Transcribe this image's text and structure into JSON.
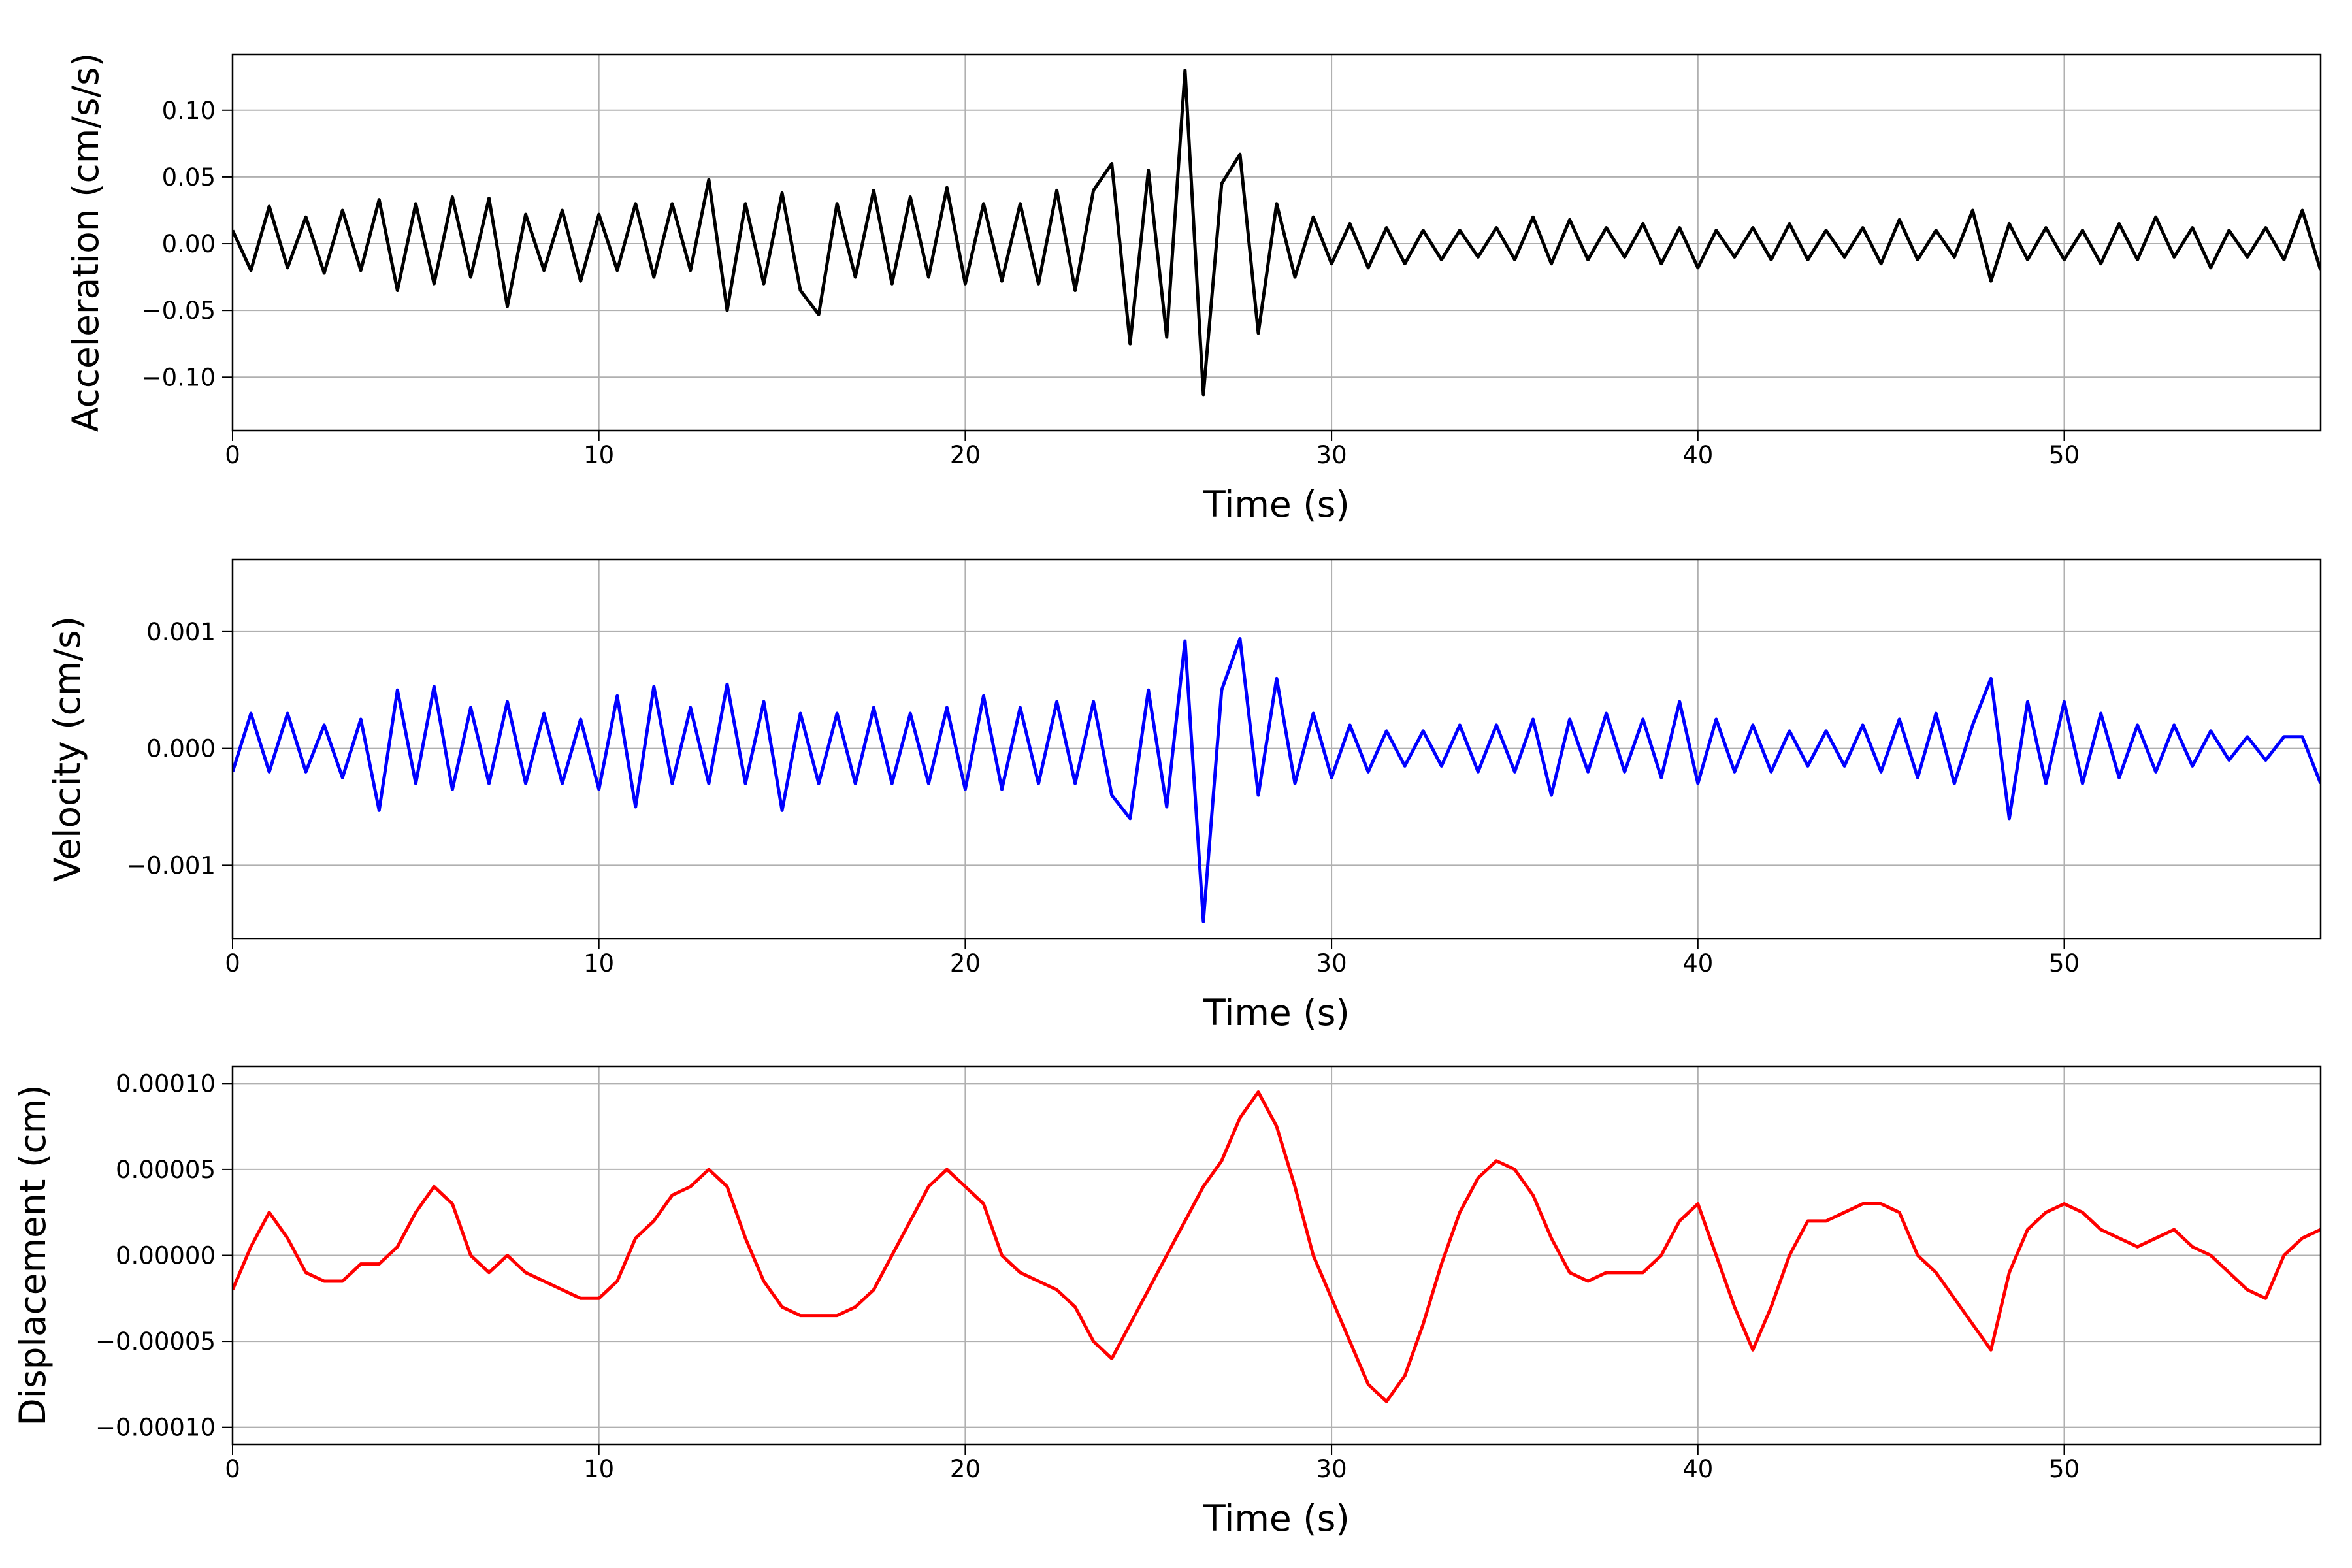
{
  "chart_data": [
    {
      "type": "line",
      "xlabel": "Time (s)",
      "ylabel": "Acceleration (cm/s/s)",
      "color": "#000000",
      "grid": true,
      "xlim": [
        0,
        57
      ],
      "ylim": [
        -0.14,
        0.142
      ],
      "xticks": [
        0,
        10,
        20,
        30,
        40,
        50
      ],
      "yticks": [
        {
          "value": -0.1,
          "label": "−0.10"
        },
        {
          "value": -0.05,
          "label": "−0.05"
        },
        {
          "value": 0,
          "label": "0.00"
        },
        {
          "value": 0.05,
          "label": "0.05"
        },
        {
          "value": 0.1,
          "label": "0.10"
        }
      ],
      "x": [
        0,
        0.5,
        1,
        1.5,
        2,
        2.5,
        3,
        3.5,
        4,
        4.5,
        5,
        5.5,
        6,
        6.5,
        7,
        7.5,
        8,
        8.5,
        9,
        9.5,
        10,
        10.5,
        11,
        11.5,
        12,
        12.5,
        13,
        13.5,
        14,
        14.5,
        15,
        15.5,
        16,
        16.5,
        17,
        17.5,
        18,
        18.5,
        19,
        19.5,
        20,
        20.5,
        21,
        21.5,
        22,
        22.5,
        23,
        23.5,
        24,
        24.5,
        25,
        25.5,
        26,
        26.5,
        27,
        27.5,
        28,
        28.5,
        29,
        29.5,
        30,
        30.5,
        31,
        31.5,
        32,
        32.5,
        33,
        33.5,
        34,
        34.5,
        35,
        35.5,
        36,
        36.5,
        37,
        37.5,
        38,
        38.5,
        39,
        39.5,
        40,
        40.5,
        41,
        41.5,
        42,
        42.5,
        43,
        43.5,
        44,
        44.5,
        45,
        45.5,
        46,
        46.5,
        47,
        47.5,
        48,
        48.5,
        49,
        49.5,
        50,
        50.5,
        51,
        51.5,
        52,
        52.5,
        53,
        53.5,
        54,
        54.5,
        55,
        55.5,
        56,
        56.5,
        57
      ],
      "values": [
        0.01,
        -0.02,
        0.028,
        -0.018,
        0.02,
        -0.022,
        0.025,
        -0.02,
        0.033,
        -0.035,
        0.03,
        -0.03,
        0.035,
        -0.025,
        0.034,
        -0.047,
        0.022,
        -0.02,
        0.025,
        -0.028,
        0.022,
        -0.02,
        0.03,
        -0.025,
        0.03,
        -0.02,
        0.048,
        -0.05,
        0.03,
        -0.03,
        0.038,
        -0.035,
        -0.053,
        0.03,
        -0.025,
        0.04,
        -0.03,
        0.035,
        -0.025,
        0.042,
        -0.03,
        0.03,
        -0.028,
        0.03,
        -0.03,
        0.04,
        -0.035,
        0.04,
        0.06,
        -0.075,
        0.055,
        -0.07,
        0.13,
        -0.113,
        0.045,
        0.067,
        -0.067,
        0.03,
        -0.025,
        0.02,
        -0.015,
        0.015,
        -0.018,
        0.012,
        -0.015,
        0.01,
        -0.012,
        0.01,
        -0.01,
        0.012,
        -0.012,
        0.02,
        -0.015,
        0.018,
        -0.012,
        0.012,
        -0.01,
        0.015,
        -0.015,
        0.012,
        -0.018,
        0.01,
        -0.01,
        0.012,
        -0.012,
        0.015,
        -0.012,
        0.01,
        -0.01,
        0.012,
        -0.015,
        0.018,
        -0.012,
        0.01,
        -0.01,
        0.025,
        -0.028,
        0.015,
        -0.012,
        0.012,
        -0.012,
        0.01,
        -0.015,
        0.015,
        -0.012,
        0.02,
        -0.01,
        0.012,
        -0.018,
        0.01,
        -0.01,
        0.012,
        -0.012,
        0.025,
        -0.02
      ]
    },
    {
      "type": "line",
      "xlabel": "Time (s)",
      "ylabel": "Velocity (cm/s)",
      "color": "#0000ff",
      "grid": true,
      "xlim": [
        0,
        57
      ],
      "ylim": [
        -0.00163,
        0.00162
      ],
      "xticks": [
        0,
        10,
        20,
        30,
        40,
        50
      ],
      "yticks": [
        {
          "value": -0.001,
          "label": "−0.001"
        },
        {
          "value": 0,
          "label": "0.000"
        },
        0.001
      ],
      "x": [
        0,
        0.5,
        1,
        1.5,
        2,
        2.5,
        3,
        3.5,
        4,
        4.5,
        5,
        5.5,
        6,
        6.5,
        7,
        7.5,
        8,
        8.5,
        9,
        9.5,
        10,
        10.5,
        11,
        11.5,
        12,
        12.5,
        13,
        13.5,
        14,
        14.5,
        15,
        15.5,
        16,
        16.5,
        17,
        17.5,
        18,
        18.5,
        19,
        19.5,
        20,
        20.5,
        21,
        21.5,
        22,
        22.5,
        23,
        23.5,
        24,
        24.5,
        25,
        25.5,
        26,
        26.5,
        27,
        27.5,
        28,
        28.5,
        29,
        29.5,
        30,
        30.5,
        31,
        31.5,
        32,
        32.5,
        33,
        33.5,
        34,
        34.5,
        35,
        35.5,
        36,
        36.5,
        37,
        37.5,
        38,
        38.5,
        39,
        39.5,
        40,
        40.5,
        41,
        41.5,
        42,
        42.5,
        43,
        43.5,
        44,
        44.5,
        45,
        45.5,
        46,
        46.5,
        47,
        47.5,
        48,
        48.5,
        49,
        49.5,
        50,
        50.5,
        51,
        51.5,
        52,
        52.5,
        53,
        53.5,
        54,
        54.5,
        55,
        55.5,
        56,
        56.5,
        57
      ],
      "values": [
        -0.0002,
        0.0003,
        -0.0002,
        0.0003,
        -0.0002,
        0.0002,
        -0.00025,
        0.00025,
        -0.00053,
        0.0005,
        -0.0003,
        0.00053,
        -0.00035,
        0.00035,
        -0.0003,
        0.0004,
        -0.0003,
        0.0003,
        -0.0003,
        0.00025,
        -0.00035,
        0.00045,
        -0.0005,
        0.00053,
        -0.0003,
        0.00035,
        -0.0003,
        0.00055,
        -0.0003,
        0.0004,
        -0.00053,
        0.0003,
        -0.0003,
        0.0003,
        -0.0003,
        0.00035,
        -0.0003,
        0.0003,
        -0.0003,
        0.00035,
        -0.00035,
        0.00045,
        -0.00035,
        0.00035,
        -0.0003,
        0.0004,
        -0.0003,
        0.0004,
        -0.0004,
        -0.0006,
        0.0005,
        -0.0005,
        0.00092,
        -0.00148,
        0.0005,
        0.00094,
        -0.0004,
        0.0006,
        -0.0003,
        0.0003,
        -0.00025,
        0.0002,
        -0.0002,
        0.00015,
        -0.00015,
        0.00015,
        -0.00015,
        0.0002,
        -0.0002,
        0.0002,
        -0.0002,
        0.00025,
        -0.0004,
        0.00025,
        -0.0002,
        0.0003,
        -0.0002,
        0.00025,
        -0.00025,
        0.0004,
        -0.0003,
        0.00025,
        -0.0002,
        0.0002,
        -0.0002,
        0.00015,
        -0.00015,
        0.00015,
        -0.00015,
        0.0002,
        -0.0002,
        0.00025,
        -0.00025,
        0.0003,
        -0.0003,
        0.0002,
        0.0006,
        -0.0006,
        0.0004,
        -0.0003,
        0.0004,
        -0.0003,
        0.0003,
        -0.00025,
        0.0002,
        -0.0002,
        0.0002,
        -0.00015,
        0.00015,
        -0.0001,
        0.0001,
        -0.0001,
        0.0001,
        0.0001,
        -0.0003
      ]
    },
    {
      "type": "line",
      "xlabel": "Time (s)",
      "ylabel": "Displacement (cm)",
      "color": "#ff0000",
      "grid": true,
      "xlim": [
        0,
        57
      ],
      "ylim": [
        -0.00011,
        0.00011
      ],
      "xticks": [
        0,
        10,
        20,
        30,
        40,
        50
      ],
      "yticks": [
        {
          "value": -0.0001,
          "label": "−0.00010"
        },
        {
          "value": -5e-05,
          "label": "−0.00005"
        },
        {
          "value": 0,
          "label": "0.00000"
        },
        {
          "value": 5e-05,
          "label": "0.00005"
        },
        {
          "value": 0.0001,
          "label": "0.00010"
        }
      ],
      "x": [
        0,
        0.5,
        1,
        1.5,
        2,
        2.5,
        3,
        3.5,
        4,
        4.5,
        5,
        5.5,
        6,
        6.5,
        7,
        7.5,
        8,
        8.5,
        9,
        9.5,
        10,
        10.5,
        11,
        11.5,
        12,
        12.5,
        13,
        13.5,
        14,
        14.5,
        15,
        15.5,
        16,
        16.5,
        17,
        17.5,
        18,
        18.5,
        19,
        19.5,
        20,
        20.5,
        21,
        21.5,
        22,
        22.5,
        23,
        23.5,
        24,
        24.5,
        25,
        25.5,
        26,
        26.5,
        27,
        27.5,
        28,
        28.5,
        29,
        29.5,
        30,
        30.5,
        31,
        31.5,
        32,
        32.5,
        33,
        33.5,
        34,
        34.5,
        35,
        35.5,
        36,
        36.5,
        37,
        37.5,
        38,
        38.5,
        39,
        39.5,
        40,
        40.5,
        41,
        41.5,
        42,
        42.5,
        43,
        43.5,
        44,
        44.5,
        45,
        45.5,
        46,
        46.5,
        47,
        47.5,
        48,
        48.5,
        49,
        49.5,
        50,
        50.5,
        51,
        51.5,
        52,
        52.5,
        53,
        53.5,
        54,
        54.5,
        55,
        55.5,
        56,
        56.5,
        57
      ],
      "values": [
        -2e-05,
        5e-06,
        2.5e-05,
        1e-05,
        -1e-05,
        -1.5e-05,
        -1.5e-05,
        -5e-06,
        -5e-06,
        5e-06,
        2.5e-05,
        4e-05,
        3e-05,
        0,
        -1e-05,
        0,
        -1e-05,
        -1.5e-05,
        -2e-05,
        -2.5e-05,
        -2.5e-05,
        -1.5e-05,
        1e-05,
        2e-05,
        3.5e-05,
        4e-05,
        5e-05,
        4e-05,
        1e-05,
        -1.5e-05,
        -3e-05,
        -3.5e-05,
        -3.5e-05,
        -3.5e-05,
        -3e-05,
        -2e-05,
        0,
        2e-05,
        4e-05,
        5e-05,
        4e-05,
        3e-05,
        0,
        -1e-05,
        -1.5e-05,
        -2e-05,
        -3e-05,
        -5e-05,
        -6e-05,
        -4e-05,
        -2e-05,
        0,
        2e-05,
        4e-05,
        5.5e-05,
        8e-05,
        9.5e-05,
        7.5e-05,
        4e-05,
        0,
        -2.5e-05,
        -5e-05,
        -7.5e-05,
        -8.5e-05,
        -7e-05,
        -4e-05,
        -5e-06,
        2.5e-05,
        4.5e-05,
        5.5e-05,
        5e-05,
        3.5e-05,
        1e-05,
        -1e-05,
        -1.5e-05,
        -1e-05,
        -1e-05,
        -1e-05,
        0,
        2e-05,
        3e-05,
        0,
        -3e-05,
        -5.5e-05,
        -3e-05,
        0,
        2e-05,
        2e-05,
        2.5e-05,
        3e-05,
        3e-05,
        2.5e-05,
        0,
        -1e-05,
        -2.5e-05,
        -4e-05,
        -5.5e-05,
        -1e-05,
        1.5e-05,
        2.5e-05,
        3e-05,
        2.5e-05,
        1.5e-05,
        1e-05,
        5e-06,
        1e-05,
        1.5e-05,
        5e-06,
        0,
        -1e-05,
        -2e-05,
        -2.5e-05,
        0,
        1e-05,
        1.5e-05
      ]
    }
  ]
}
